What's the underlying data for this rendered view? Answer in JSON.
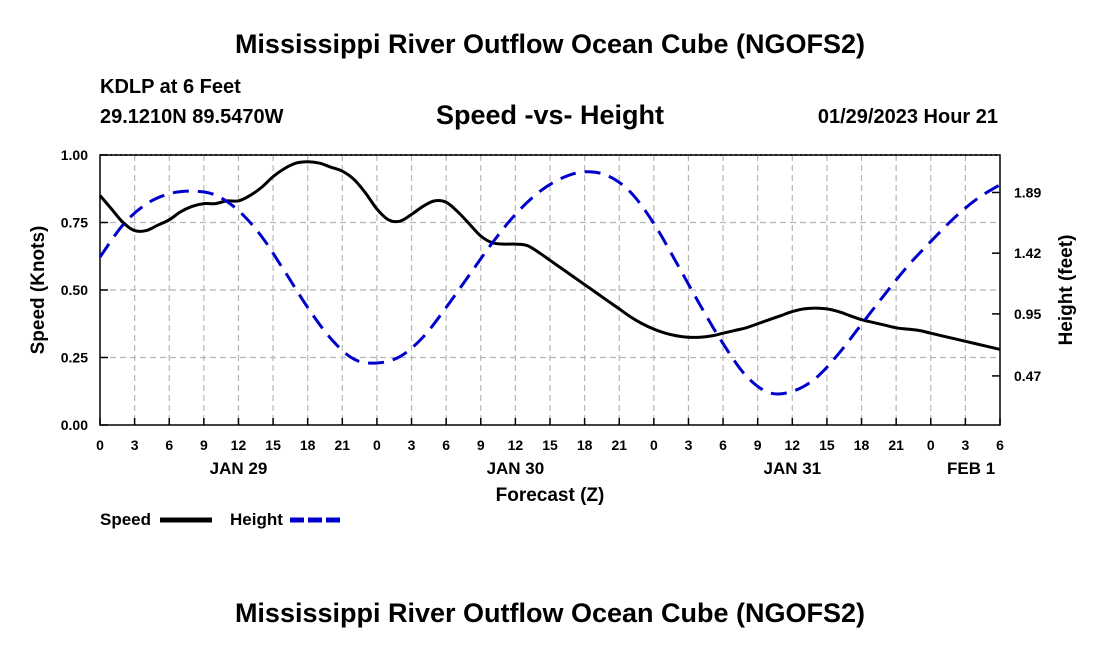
{
  "header": {
    "title": "Mississippi River Outflow Ocean Cube (NGOFS2)",
    "station": "KDLP at 6 Feet",
    "coordinates": "29.1210N  89.5470W",
    "subtitle": "Speed -vs- Height",
    "datetime": "01/29/2023 Hour 21"
  },
  "footer": {
    "title": "Mississippi River Outflow Ocean Cube (NGOFS2)"
  },
  "chart_data": {
    "type": "line",
    "title": "Speed -vs- Height",
    "xlabel": "Forecast (Z)",
    "ylabel": "Speed (Knots)",
    "y2label": "Height (feet)",
    "x_unit": "hours since JAN 29 00Z",
    "xlim": [
      0,
      78
    ],
    "ylim": [
      0,
      1
    ],
    "y2lim": [
      0.09,
      2.18
    ],
    "grid": true,
    "x_ticks": [
      0,
      3,
      6,
      9,
      12,
      15,
      18,
      21,
      24,
      27,
      30,
      33,
      36,
      39,
      42,
      45,
      48,
      51,
      54,
      57,
      60,
      63,
      66,
      69,
      72,
      75,
      78
    ],
    "x_tick_labels": [
      "0",
      "3",
      "6",
      "9",
      "12",
      "15",
      "18",
      "21",
      "0",
      "3",
      "6",
      "9",
      "12",
      "15",
      "18",
      "21",
      "0",
      "3",
      "6",
      "9",
      "12",
      "15",
      "18",
      "21",
      "0",
      "3",
      "6"
    ],
    "date_labels": [
      {
        "label": "JAN 29",
        "x": 12
      },
      {
        "label": "JAN 30",
        "x": 36
      },
      {
        "label": "JAN 31",
        "x": 60
      },
      {
        "label": "FEB 1",
        "x": 75.5
      }
    ],
    "y_ticks": [
      0,
      0.25,
      0.5,
      0.75,
      1.0
    ],
    "y_tick_labels": [
      "0.00",
      "0.25",
      "0.50",
      "0.75",
      "1.00"
    ],
    "y2_ticks": [
      0.47,
      0.95,
      1.42,
      1.89
    ],
    "y2_tick_labels": [
      "0.47",
      "0.95",
      "1.42",
      "1.89"
    ],
    "legend": {
      "position": "bottom-left",
      "entries": [
        {
          "label": "Speed",
          "color": "#000000",
          "dash": "solid"
        },
        {
          "label": "Height",
          "color": "#0000cc",
          "dash": "dashed"
        }
      ]
    },
    "series": [
      {
        "name": "Speed",
        "axis": "left",
        "color": "#000000",
        "x": [
          0,
          1,
          2,
          3,
          4,
          5,
          6,
          7,
          8,
          9,
          10,
          11,
          12,
          13,
          14,
          15,
          16,
          17,
          18,
          19,
          20,
          21,
          22,
          23,
          24,
          25,
          26,
          27,
          28,
          29,
          30,
          31,
          32,
          33,
          34,
          35,
          36,
          37,
          38,
          39,
          40,
          41,
          42,
          43,
          44,
          45,
          46,
          47,
          48,
          49,
          50,
          51,
          52,
          53,
          54,
          55,
          56,
          57,
          58,
          59,
          60,
          61,
          62,
          63,
          64,
          65,
          66,
          67,
          68,
          69,
          70,
          71,
          72,
          73,
          74,
          75,
          76,
          77,
          78
        ],
        "values": [
          0.85,
          0.8,
          0.75,
          0.72,
          0.72,
          0.74,
          0.76,
          0.79,
          0.81,
          0.82,
          0.82,
          0.83,
          0.83,
          0.85,
          0.88,
          0.92,
          0.95,
          0.97,
          0.975,
          0.97,
          0.955,
          0.94,
          0.91,
          0.86,
          0.8,
          0.76,
          0.755,
          0.78,
          0.81,
          0.83,
          0.825,
          0.79,
          0.745,
          0.7,
          0.675,
          0.67,
          0.67,
          0.665,
          0.64,
          0.61,
          0.58,
          0.55,
          0.52,
          0.49,
          0.46,
          0.43,
          0.4,
          0.375,
          0.355,
          0.34,
          0.33,
          0.325,
          0.325,
          0.33,
          0.34,
          0.35,
          0.36,
          0.375,
          0.39,
          0.405,
          0.42,
          0.43,
          0.433,
          0.43,
          0.42,
          0.405,
          0.39,
          0.38,
          0.37,
          0.36,
          0.355,
          0.35,
          0.34,
          0.33,
          0.32,
          0.31,
          0.3,
          0.29,
          0.28
        ]
      },
      {
        "name": "Height",
        "axis": "right",
        "color": "#0000cc",
        "x": [
          0,
          2,
          4,
          6,
          8,
          10,
          12,
          14,
          16,
          18,
          20,
          22,
          24,
          26,
          28,
          30,
          32,
          34,
          36,
          38,
          40,
          42,
          44,
          46,
          48,
          50,
          52,
          54,
          56,
          58,
          60,
          62,
          64,
          66,
          68,
          70,
          72,
          74,
          76,
          78
        ],
        "values": [
          1.39,
          1.64,
          1.8,
          1.88,
          1.9,
          1.87,
          1.75,
          1.55,
          1.28,
          1.0,
          0.76,
          0.6,
          0.57,
          0.62,
          0.77,
          1.0,
          1.25,
          1.5,
          1.72,
          1.89,
          2.0,
          2.05,
          2.02,
          1.89,
          1.65,
          1.34,
          1.02,
          0.72,
          0.47,
          0.34,
          0.35,
          0.45,
          0.64,
          0.87,
          1.1,
          1.32,
          1.51,
          1.69,
          1.84,
          1.95
        ]
      }
    ]
  }
}
